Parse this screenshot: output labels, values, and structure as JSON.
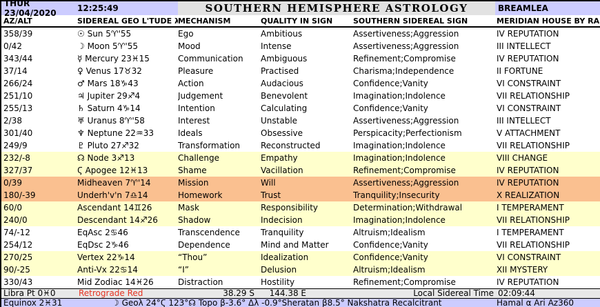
{
  "header": {
    "date": "THUR 23/04/2020",
    "time": "12:25:49",
    "title": "SOUTHERN HEMISPHERE ASTROLOGY",
    "location": "BREAMLEA"
  },
  "columns": [
    "AZ/ALT",
    "SIDEREAL GEO L'TUDE λ",
    "MECHANISM",
    "QUALITY IN SIGN",
    "SOUTHERN SIDEREAL SIGN",
    "MERIDIAN HOUSE BY RA"
  ],
  "table": {
    "rows": [
      {
        "az": "358/39",
        "body": "☉ Sun 5♈'55",
        "mech": "Ego",
        "quality": "Ambitious",
        "sign": "Assertiveness;Aggression",
        "house": "IV REPUTATION",
        "bg": "white"
      },
      {
        "az": "0/42",
        "body": "☽ Moon 5♈'55",
        "mech": "Mood",
        "quality": "Intense",
        "sign": "Assertiveness;Aggression",
        "house": "III INTELLECT",
        "bg": "white"
      },
      {
        "az": "343/44",
        "body": "☿ Mercury 23♓15",
        "mech": "Communication",
        "quality": "Ambiguous",
        "sign": "Refinement;Compromise",
        "house": "IV REPUTATION",
        "bg": "white"
      },
      {
        "az": "37/14",
        "body": "♀ Venus 17♉32",
        "mech": "Pleasure",
        "quality": "Practised",
        "sign": "Charisma;Independence",
        "house": "II FORTUNE",
        "bg": "white"
      },
      {
        "az": "266/24",
        "body": "♂ Mars 18♑43",
        "mech": "Action",
        "quality": "Audacious",
        "sign": "Confidence;Vanity",
        "house": "VI CONSTRAINT",
        "bg": "white"
      },
      {
        "az": "251/10",
        "body": "♃ Jupiter 29♐4",
        "mech": "Judgement",
        "quality": "Benevolent",
        "sign": "Imagination;Indolence",
        "house": "VII RELATIONSHIP",
        "bg": "white"
      },
      {
        "az": "255/13",
        "body": "♄ Saturn 4♑14",
        "mech": "Intention",
        "quality": "Calculating",
        "sign": "Confidence;Vanity",
        "house": "VI CONSTRAINT",
        "bg": "white"
      },
      {
        "az": "2/38",
        "body": "♅ Uranus 8♈'58",
        "mech": "Interest",
        "quality": "Unstable",
        "sign": "Assertiveness;Aggression",
        "house": "III INTELLECT",
        "bg": "white"
      },
      {
        "az": "301/40",
        "body": "♆ Neptune 22♒33",
        "mech": "Ideals",
        "quality": "Obsessive",
        "sign": "Perspicacity;Perfectionism",
        "house": "V ATTACHMENT",
        "bg": "white"
      },
      {
        "az": "249/9",
        "body": "♇ Pluto 27♐32",
        "mech": "Transformation",
        "quality": "Reconstructed",
        "sign": "Imagination;Indolence",
        "house": "VII RELATIONSHIP",
        "bg": "white"
      },
      {
        "az": "232/-8",
        "body": "☊ Node 3♐13",
        "mech": "Challenge",
        "quality": "Empathy",
        "sign": "Imagination;Indolence",
        "house": "VIII CHANGE",
        "bg": "yellow"
      },
      {
        "az": "327/37",
        "body": "Ϛ Apogee 12♓13",
        "mech": "Shame",
        "quality": "Vacillation",
        "sign": "Refinement;Compromise",
        "house": "IV REPUTATION",
        "bg": "yellow"
      },
      {
        "az": "0/39",
        "body": "Midheaven 7♈'14",
        "mech": "Mission",
        "quality": "Will",
        "sign": "Assertiveness;Aggression",
        "house": "IV REPUTATION",
        "bg": "orange"
      },
      {
        "az": "180/-39",
        "body": "Underh'v'n 7♎14",
        "mech": "Homework",
        "quality": "Trust",
        "sign": "Tranquility;Insecurity",
        "house": "X REALIZATION",
        "bg": "orange"
      },
      {
        "az": "60/0",
        "body": "Ascendant 14♊26",
        "mech": "Mask",
        "quality": "Responsibility",
        "sign": "Determination;Withdrawal",
        "house": "I TEMPERAMENT",
        "bg": "yellow"
      },
      {
        "az": "240/0",
        "body": "Descendant 14♐26",
        "mech": "Shadow",
        "quality": "Indecision",
        "sign": "Imagination;Indolence",
        "house": "VII RELATIONSHIP",
        "bg": "yellow"
      },
      {
        "az": "74/-12",
        "body": "EqAsc 2♋46",
        "mech": "Transcendence",
        "quality": "Tranquility",
        "sign": "Altruism;Idealism",
        "house": "I TEMPERAMENT",
        "bg": "white"
      },
      {
        "az": "254/12",
        "body": "EqDsc 2♑46",
        "mech": "Dependence",
        "quality": "Mind and Matter",
        "sign": "Confidence;Vanity",
        "house": "VII RELATIONSHIP",
        "bg": "white"
      },
      {
        "az": "270/25",
        "body": "Vertex 22♑14",
        "mech": "“Thou”",
        "quality": "Idealization",
        "sign": "Confidence;Vanity",
        "house": "VI CONSTRAINT",
        "bg": "yellow"
      },
      {
        "az": "90/-25",
        "body": "Anti-Vx 22♋14",
        "mech": "“I”",
        "quality": "Delusion",
        "sign": "Altruism;Idealism",
        "house": "XII MYSTERY",
        "bg": "yellow"
      },
      {
        "az": "330/43",
        "body": "Mid Zodiac 14♓26",
        "mech": "Distraction",
        "quality": "Hostility",
        "sign": "Refinement;Compromise",
        "house": "IV REPUTATION",
        "bg": "white"
      }
    ]
  },
  "footer": {
    "libra_pt": "Libra Pt 0♓0",
    "retrograde_legend": "Retrograde Red",
    "latitude": "38.29 S",
    "longitude": "144.38 E",
    "lst_label": "Local Sidereal Time",
    "lst_value": "02:09:44",
    "equinox": "Equinox 2♓31",
    "ephemeris": "☽ Geoλ 24°Ϛ 123°☊ Topo β-3.6° Δλ -0.9°Sheratan β8.5° Nakshatra Recalcitrant",
    "star": "Hamal α Ari Az360"
  },
  "colors": {
    "lavender": "#ccccff",
    "title_grey": "#e2e2e2",
    "row_yellow": "#ffffcc",
    "row_orange": "#fac090",
    "footer_grey": "#e8e8e8",
    "retrograde_red": "#e53322"
  }
}
